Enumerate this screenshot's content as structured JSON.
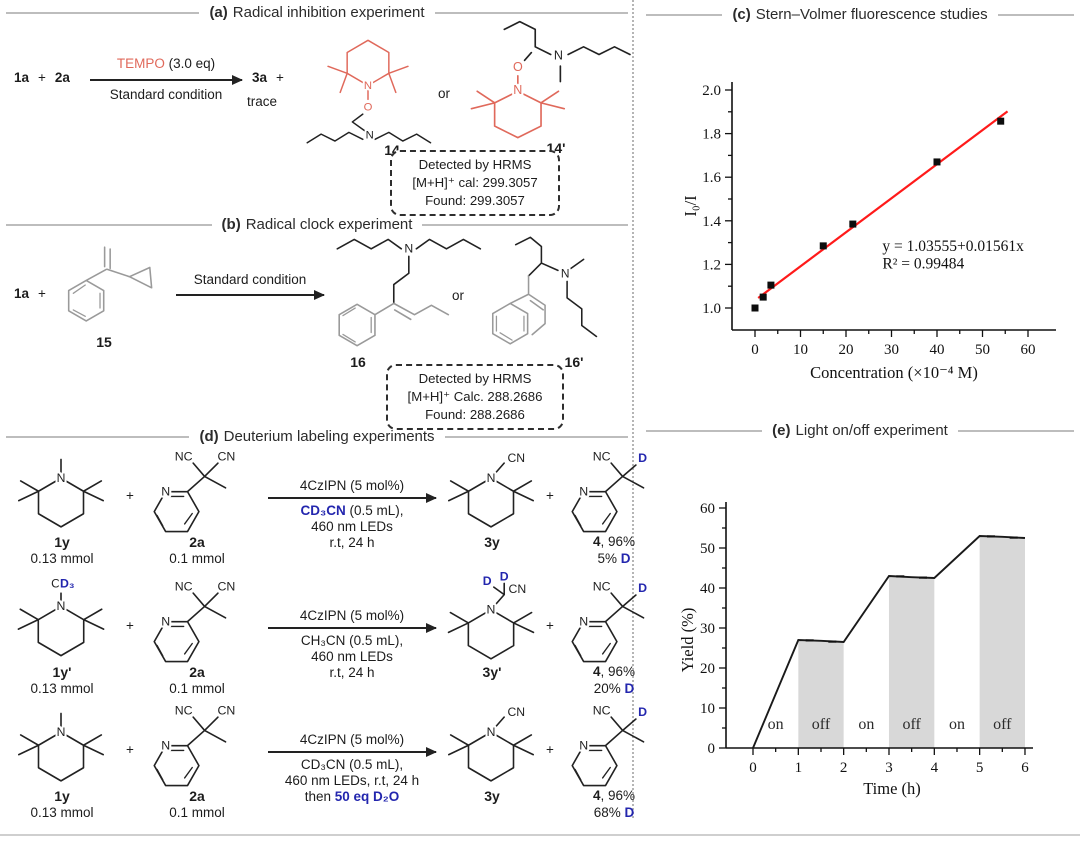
{
  "colors": {
    "salmon": "#e0695b",
    "blue": "#2326ae",
    "fit_red": "#ff1a1a",
    "shade": "#d8d8d8",
    "rule_gray": "#bdbdbd",
    "struct_gray": "#9a9a9a"
  },
  "atoms": {
    "N": "N",
    "O": "O",
    "CN": "CN",
    "NC": "NC",
    "D": "D",
    "C": "C",
    "D3": "D₃"
  },
  "panel_a": {
    "title_prefix": "(a)",
    "title": "Radical inhibition experiment",
    "r1": "1a",
    "plus": "+",
    "r2": "2a",
    "arrow_top_red": "TEMPO",
    "arrow_top_rest": " (3.0 eq)",
    "arrow_bottom": "Standard condition",
    "p": "3a",
    "p_plus": "+",
    "p_note": "trace",
    "or": "or",
    "c14": "14",
    "c14p": "14'",
    "hrms1": "Detected by HRMS",
    "hrms2": "[M+H]⁺ cal: 299.3057",
    "hrms3": "Found: 299.3057"
  },
  "panel_b": {
    "title_prefix": "(b)",
    "title": "Radical clock experiment",
    "r1": "1a",
    "plus": "+",
    "c15": "15",
    "arrow_top": "Standard condition",
    "c16": "16",
    "or": "or",
    "c16p": "16'",
    "hrms1": "Detected by HRMS",
    "hrms2": "[M+H]⁺ Calc. 288.2686",
    "hrms3": "Found: 288.2686"
  },
  "panel_c": {
    "title_prefix": "(c)",
    "title": "Stern–Volmer fluorescence studies"
  },
  "panel_e": {
    "title_prefix": "(e)",
    "title": "Light on/off experiment"
  },
  "panel_d": {
    "title_prefix": "(d)",
    "title": "Deuterium labeling experiments",
    "rows": [
      {
        "s1": "1y",
        "s1_amt": "0.13 mmol",
        "plus1": "+",
        "s2": "2a",
        "s2_amt": "0.1 mmol",
        "cond_top": "4CzIPN (5 mol%)",
        "b1_blue": "CD₃CN",
        "b1_rest": " (0.5 mL),",
        "b2": "460 nm LEDs",
        "b3": "r.t, 24 h",
        "p1": "3y",
        "plus2": "+",
        "p2": "4",
        "p2_yield": ", 96%",
        "p2_d_pct": "5% ",
        "p2_d": "D"
      },
      {
        "s1": "1y'",
        "s1_amt": "0.13 mmol",
        "plus1": "+",
        "s2": "2a",
        "s2_amt": "0.1 mmol",
        "cond_top": "4CzIPN (5 mol%)",
        "b1_blue": "",
        "b1_rest": "CH₃CN (0.5 mL),",
        "b2": "460 nm LEDs",
        "b3": "r.t, 24 h",
        "p1": "3y'",
        "plus2": "+",
        "p2": "4",
        "p2_yield": ", 96%",
        "p2_d_pct": "20% ",
        "p2_d": "D"
      },
      {
        "s1": "1y",
        "s1_amt": "0.13 mmol",
        "plus1": "+",
        "s2": "2a",
        "s2_amt": "0.1 mmol",
        "cond_top": "4CzIPN (5 mol%)",
        "b1_blue": "",
        "b1_rest": "CD₃CN (0.5 mL),",
        "b2": "460 nm LEDs, r.t, 24 h",
        "b3_pre": "then ",
        "b3_blue": "50 eq D₂O",
        "p1": "3y",
        "plus2": "+",
        "p2": "4",
        "p2_yield": ", 96%",
        "p2_d_pct": "68% ",
        "p2_d": "D"
      }
    ]
  },
  "chart_data": [
    {
      "id": "stern_volmer",
      "type": "scatter",
      "title": "(c) Stern–Volmer fluorescence studies",
      "xlabel": "Concentration (×10⁻⁴ M)",
      "ylabel": "I₀/I",
      "xlim": [
        -5,
        61
      ],
      "ylim": [
        0.9,
        2.05
      ],
      "xticks": [
        0,
        10,
        20,
        30,
        40,
        50,
        60
      ],
      "yticks": [
        1.0,
        1.2,
        1.4,
        1.6,
        1.8,
        2.0
      ],
      "xminors": [
        5,
        15,
        25,
        35,
        45,
        55
      ],
      "yminors": [
        1.1,
        1.3,
        1.5,
        1.7,
        1.9
      ],
      "points": [
        [
          0,
          1.0
        ],
        [
          1.8,
          1.05
        ],
        [
          3.5,
          1.105
        ],
        [
          15,
          1.285
        ],
        [
          21.5,
          1.385
        ],
        [
          40,
          1.67
        ],
        [
          54,
          1.857
        ]
      ],
      "fit": {
        "x1": 0.7,
        "y1": 1.046,
        "x2": 55.5,
        "y2": 1.902,
        "color": "#ff1a1a"
      },
      "equation": "y = 1.03555+0.01561x",
      "r_squared": "R² = 0.99484",
      "ann_x": 28,
      "ann_y1": 1.262,
      "ann_y2": 1.182,
      "grid": false,
      "legend_position": "none"
    },
    {
      "id": "light_on_off",
      "type": "line",
      "title": "(e) Light on/off experiment",
      "xlabel": "Time (h)",
      "ylabel": "Yield (%)",
      "xlim": [
        0,
        6
      ],
      "ylim": [
        0,
        60
      ],
      "xticks": [
        0,
        1,
        2,
        3,
        4,
        5,
        6
      ],
      "yticks": [
        0,
        10,
        20,
        30,
        40,
        50,
        60
      ],
      "points": [
        [
          0,
          0
        ],
        [
          1,
          27
        ],
        [
          1.5,
          26.8
        ],
        [
          2,
          26.5
        ],
        [
          3,
          43
        ],
        [
          3.5,
          42.7
        ],
        [
          4,
          42.5
        ],
        [
          5,
          53
        ],
        [
          5.5,
          52.8
        ],
        [
          6,
          52.5
        ]
      ],
      "marker_points": [
        [
          1.25,
          26.9
        ],
        [
          1.75,
          26.6
        ],
        [
          3.25,
          42.9
        ],
        [
          3.75,
          42.6
        ],
        [
          5.25,
          52.9
        ],
        [
          5.75,
          52.6
        ]
      ],
      "off_regions": [
        [
          1,
          2
        ],
        [
          3,
          4
        ],
        [
          5,
          6
        ]
      ],
      "segment_labels": [
        {
          "x": 0.5,
          "label": "on"
        },
        {
          "x": 1.5,
          "label": "off"
        },
        {
          "x": 2.5,
          "label": "on"
        },
        {
          "x": 3.5,
          "label": "off"
        },
        {
          "x": 4.5,
          "label": "on"
        },
        {
          "x": 5.5,
          "label": "off"
        }
      ],
      "label_y": 6,
      "shade_color": "#d8d8d8",
      "line_color": "#1a1a1a",
      "grid": false
    }
  ]
}
